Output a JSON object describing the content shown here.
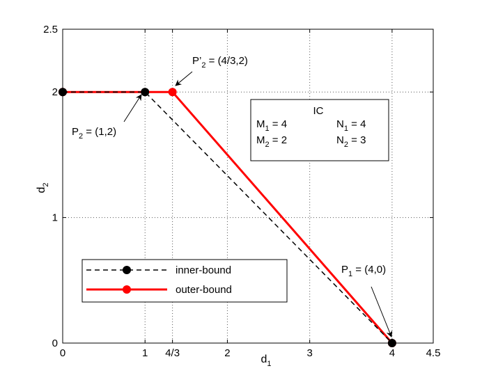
{
  "chart_data": {
    "type": "line",
    "xlabel": "d",
    "xlabel_sub": "1",
    "ylabel": "d",
    "ylabel_sub": "2",
    "xlim": [
      0,
      4.5
    ],
    "ylim": [
      0,
      2.5
    ],
    "xticks": [
      {
        "value": 0,
        "label": "0"
      },
      {
        "value": 1,
        "label": "1"
      },
      {
        "value": 1.3333,
        "label": "4/3"
      },
      {
        "value": 2,
        "label": "2"
      },
      {
        "value": 3,
        "label": "3"
      },
      {
        "value": 4,
        "label": "4"
      },
      {
        "value": 4.5,
        "label": "4.5"
      }
    ],
    "yticks": [
      {
        "value": 0,
        "label": "0"
      },
      {
        "value": 1,
        "label": "1"
      },
      {
        "value": 2,
        "label": "2"
      },
      {
        "value": 2.5,
        "label": "2.5"
      }
    ],
    "grid": "dotted",
    "series": [
      {
        "name": "inner-bound",
        "color": "#000000",
        "style": "dashed",
        "marker": "circle",
        "x": [
          0,
          1,
          4
        ],
        "y": [
          2,
          2,
          0
        ]
      },
      {
        "name": "outer-bound",
        "color": "#ff0000",
        "style": "solid",
        "marker": "circle",
        "x": [
          0,
          1.3333,
          4
        ],
        "y": [
          2,
          2,
          0
        ]
      }
    ],
    "annotations": [
      {
        "id": "p2",
        "base": "P",
        "sub": "2",
        "text": " = (1,2)",
        "x": 1,
        "y": 2
      },
      {
        "id": "p2prime",
        "base": "P’",
        "sub": "2",
        "text": " = (4/3,2)",
        "x": 1.3333,
        "y": 2
      },
      {
        "id": "p1",
        "base": "P",
        "sub": "1",
        "text": " = (4,0)",
        "x": 4,
        "y": 0
      }
    ],
    "info_box": {
      "title": "IC",
      "rows": [
        {
          "left_base": "M",
          "left_sub": "1",
          "left_val": " = 4",
          "right_base": "N",
          "right_sub": "1",
          "right_val": " = 4"
        },
        {
          "left_base": "M",
          "left_sub": "2",
          "left_val": " = 2",
          "right_base": "N",
          "right_sub": "2",
          "right_val": " = 3"
        }
      ]
    },
    "legend_position": "lower-left"
  }
}
